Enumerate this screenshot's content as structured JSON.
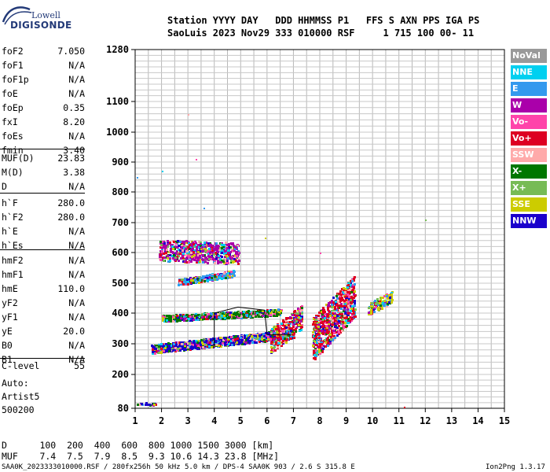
{
  "logo": {
    "line1": "Lowell",
    "line2": "DIGISONDE"
  },
  "header": {
    "line1": "Station YYYY DAY   DDD HHMMSS P1   FFS S AXN PPS IGA PS",
    "line2": "SaoLuis 2023 Nov29 333 010000 RSF     1 715 100 00- 11"
  },
  "params": [
    {
      "name": "foF2",
      "value": "7.050"
    },
    {
      "name": "foF1",
      "value": "N/A"
    },
    {
      "name": "foF1p",
      "value": "N/A"
    },
    {
      "name": "foE",
      "value": "N/A"
    },
    {
      "name": "foEp",
      "value": "0.35"
    },
    {
      "name": "fxI",
      "value": "8.20"
    },
    {
      "name": "foEs",
      "value": "N/A"
    },
    {
      "name": "fmin",
      "value": "3.40"
    },
    {
      "name": "MUF(D)",
      "value": "23.83"
    },
    {
      "name": "M(D)",
      "value": "3.38"
    },
    {
      "name": "D",
      "value": "N/A"
    },
    {
      "name": "h`F",
      "value": "280.0"
    },
    {
      "name": "h`F2",
      "value": "280.0"
    },
    {
      "name": "h`E",
      "value": "N/A"
    },
    {
      "name": "h`Es",
      "value": "N/A"
    },
    {
      "name": "hmF2",
      "value": "N/A"
    },
    {
      "name": "hmF1",
      "value": "N/A"
    },
    {
      "name": "hmE",
      "value": "110.0"
    },
    {
      "name": "yF2",
      "value": "N/A"
    },
    {
      "name": "yF1",
      "value": "N/A"
    },
    {
      "name": "yE",
      "value": "20.0"
    },
    {
      "name": "B0",
      "value": "N/A"
    },
    {
      "name": "B1",
      "value": "N/A"
    },
    {
      "name": "C-level",
      "value": "55"
    }
  ],
  "auto": {
    "line1": "Auto:",
    "line2": "Artist5",
    "line3": "500200"
  },
  "legend": [
    {
      "label": "NoVal",
      "color": "#999999"
    },
    {
      "label": "NNE",
      "color": "#00d0f0"
    },
    {
      "label": "E",
      "color": "#3399ee"
    },
    {
      "label": "W",
      "color": "#aa00aa"
    },
    {
      "label": "Vo-",
      "color": "#ff44aa"
    },
    {
      "label": "Vo+",
      "color": "#dd0022"
    },
    {
      "label": "SSW",
      "color": "#ffaaaa"
    },
    {
      "label": "X-",
      "color": "#007700"
    },
    {
      "label": "X+",
      "color": "#77bb55"
    },
    {
      "label": "SSE",
      "color": "#cccc00"
    },
    {
      "label": "NNW",
      "color": "#1a00cc"
    }
  ],
  "footer": {
    "d_row": "D      100  200  400  600  800 1000 1500 3000 [km]",
    "muf_row": "MUF    7.4  7.5  7.9  8.5  9.3 10.6 14.3 23.8 [MHz]",
    "source": "SAA0K_2023333010000.RSF / 280fx256h 50 kHz 5.0 km / DPS-4 SAA0K 903 / 2.6 S 315.8 E",
    "version": "Ion2Png 1.3.17"
  },
  "chart_data": {
    "type": "scatter",
    "title": "",
    "xlabel": "",
    "ylabel": "",
    "xlim": [
      1,
      15
    ],
    "ylim": [
      80,
      1280
    ],
    "y_scale": "nonlinear (ionogram virtual height)",
    "x_ticks": [
      "1",
      "2",
      "3",
      "4",
      "5",
      "6",
      "7",
      "8",
      "9",
      "10",
      "11",
      "12",
      "13",
      "14",
      "15"
    ],
    "y_ticks": [
      "80",
      "200",
      "300",
      "400",
      "500",
      "600",
      "700",
      "800",
      "900",
      "1000",
      "1100",
      "1280"
    ],
    "y_tick_values": [
      80,
      200,
      300,
      400,
      500,
      600,
      700,
      800,
      900,
      1000,
      1100,
      1280
    ],
    "grid": true,
    "legend_position": "right",
    "traces": [
      {
        "name": "F-layer O trace",
        "x_range": [
          1.6,
          7.0
        ],
        "h_start": 285,
        "h_end": 335,
        "density": 1400
      },
      {
        "name": "F-layer X trace",
        "x_range": [
          2.0,
          6.5
        ],
        "h_start": 385,
        "h_end": 405,
        "density": 900
      },
      {
        "name": "Multi-hop F 2nd",
        "x_range": [
          2.6,
          4.8
        ],
        "h_start": 505,
        "h_end": 535,
        "density": 260
      },
      {
        "name": "Multi-hop F 3rd",
        "x_range": [
          1.9,
          4.9
        ],
        "h_start": 610,
        "h_end": 600,
        "density": 620
      },
      {
        "name": "Spread F cluster 1",
        "x_range": [
          6.1,
          7.3
        ],
        "h_start": 310,
        "h_end": 390,
        "density": 300
      },
      {
        "name": "Spread F cluster 2",
        "x_range": [
          7.7,
          9.3
        ],
        "h_start": 315,
        "h_end": 460,
        "density": 700
      },
      {
        "name": "Spread F cluster 3",
        "x_range": [
          9.8,
          10.7
        ],
        "h_start": 415,
        "h_end": 455,
        "density": 120
      },
      {
        "name": "Low echo",
        "x_range": [
          1.05,
          1.75
        ],
        "h_start": 98,
        "h_end": 98,
        "density": 25
      }
    ],
    "profile_line": {
      "x": [
        4.0,
        4.0,
        4.9,
        5.9,
        6.0,
        6.9
      ],
      "h": [
        295,
        400,
        420,
        410,
        330,
        330
      ]
    }
  }
}
